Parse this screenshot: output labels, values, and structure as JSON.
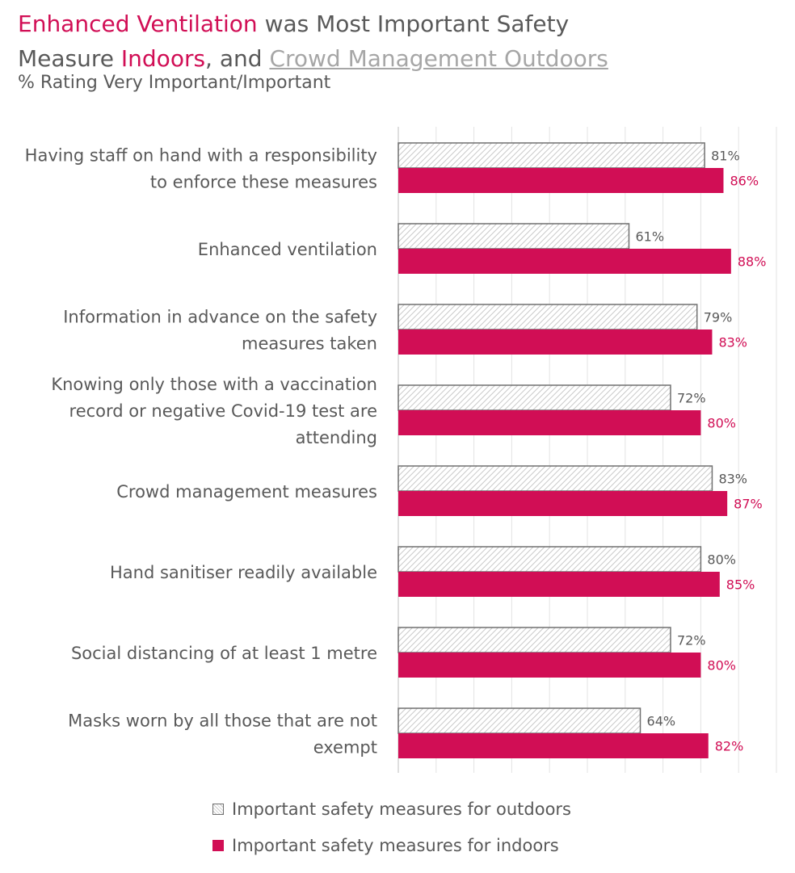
{
  "title": {
    "part1": "Enhanced Ventilation",
    "part2": " was Most Important Safety",
    "part3": "Measure ",
    "part4": "Indoors",
    "part5": ", and ",
    "part6": "Crowd Management Outdoors"
  },
  "subtitle": "% Rating Very Important/Important",
  "colors": {
    "indoors": "#d10e55",
    "outdoors_border": "#707070",
    "text": "#595959"
  },
  "chart_data": {
    "type": "bar",
    "orientation": "horizontal",
    "categories": [
      [
        "Having staff on hand with a responsibility",
        "to enforce these measures"
      ],
      [
        "Enhanced ventilation"
      ],
      [
        "Information in advance on the safety",
        "measures taken"
      ],
      [
        "Knowing only those with a vaccination",
        "record or negative Covid-19 test are",
        "attending"
      ],
      [
        "Crowd management measures"
      ],
      [
        "Hand sanitiser readily available"
      ],
      [
        "Social distancing of at least 1 metre"
      ],
      [
        "Masks worn by all those that are not",
        "exempt"
      ]
    ],
    "series": [
      {
        "name": "Important safety measures for outdoors",
        "values": [
          81,
          61,
          79,
          72,
          83,
          80,
          72,
          64
        ],
        "labels": [
          "81%",
          "61%",
          "79%",
          "72%",
          "83%",
          "80%",
          "72%",
          "64%"
        ]
      },
      {
        "name": "Important safety measures for indoors",
        "values": [
          86,
          88,
          83,
          80,
          87,
          85,
          80,
          82
        ],
        "labels": [
          "86%",
          "88%",
          "83%",
          "80%",
          "87%",
          "85%",
          "80%",
          "82%"
        ]
      }
    ],
    "xlim": [
      0,
      100
    ],
    "grid": true,
    "legend_position": "bottom"
  },
  "legend": {
    "outdoors": "Important safety measures for outdoors",
    "indoors": "Important safety measures for indoors"
  }
}
